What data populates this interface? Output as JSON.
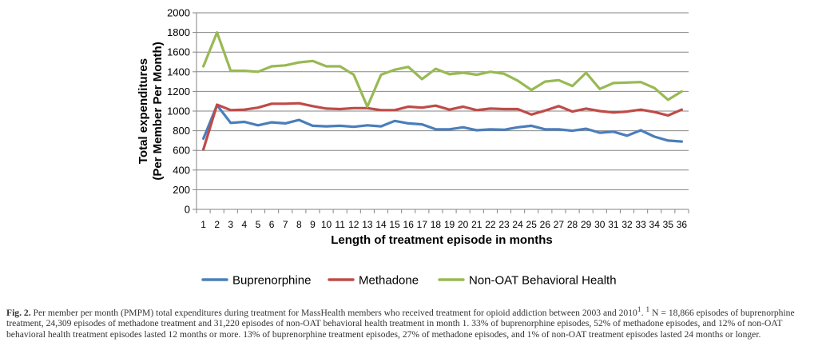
{
  "chart_data": {
    "type": "line",
    "ylabel": "Total expenditures\n(Per Member Per Month)",
    "xlabel": "Length of treatment episode in months",
    "ylim": [
      0,
      2000
    ],
    "yticks": [
      0,
      200,
      400,
      600,
      800,
      1000,
      1200,
      1400,
      1600,
      1800,
      2000
    ],
    "grid": true,
    "legend_position": "bottom",
    "x": [
      "1",
      "2",
      "3",
      "4",
      "5",
      "6",
      "7",
      "8",
      "9",
      "10",
      "11",
      "12",
      "13",
      "14",
      "15",
      "16",
      "17",
      "18",
      "19",
      "20",
      "21",
      "22",
      "23",
      "24",
      "25",
      "26",
      "27",
      "28",
      "29",
      "30",
      "31",
      "32",
      "33",
      "34",
      "35",
      "36"
    ],
    "series": [
      {
        "name": "Buprenorphine",
        "color": "#4a7ebb",
        "values": [
          720,
          1060,
          880,
          890,
          855,
          885,
          875,
          910,
          850,
          845,
          850,
          840,
          855,
          845,
          900,
          875,
          865,
          815,
          815,
          835,
          805,
          815,
          810,
          835,
          850,
          815,
          815,
          800,
          820,
          780,
          790,
          750,
          805,
          740,
          700,
          690
        ]
      },
      {
        "name": "Methadone",
        "color": "#be4b48",
        "values": [
          610,
          1065,
          1010,
          1015,
          1035,
          1075,
          1075,
          1080,
          1050,
          1025,
          1020,
          1030,
          1030,
          1010,
          1010,
          1045,
          1035,
          1055,
          1015,
          1045,
          1010,
          1025,
          1020,
          1020,
          965,
          1005,
          1050,
          995,
          1025,
          1000,
          985,
          995,
          1015,
          990,
          955,
          1015
        ]
      },
      {
        "name": "Non-OAT Behavioral Health",
        "color": "#98b954",
        "values": [
          1455,
          1800,
          1410,
          1410,
          1400,
          1455,
          1465,
          1495,
          1510,
          1455,
          1455,
          1370,
          1045,
          1370,
          1420,
          1450,
          1325,
          1430,
          1375,
          1390,
          1370,
          1400,
          1380,
          1310,
          1215,
          1300,
          1315,
          1255,
          1390,
          1225,
          1285,
          1290,
          1295,
          1235,
          1115,
          1200
        ]
      }
    ]
  },
  "caption": {
    "label": "Fig. 2.",
    "text": " Per member per month (PMPM) total expenditures during treatment for MassHealth members who received treatment for opioid addiction between 2003 and 2010",
    "sup1": "1",
    "text2": ". ",
    "sup2": "1",
    "text3": " N = 18,866 episodes of buprenorphine treatment, 24,309 episodes of methadone treatment and 31,220 episodes of non-OAT behavioral health treatment in month 1. 33% of buprenorphine episodes, 52% of methadone episodes, and 12% of non-OAT behavioral health treatment episodes lasted 12 months or more. 13% of buprenorphine treatment episodes, 27% of methadone episodes, and 1% of non-OAT treatment episodes lasted 24 months or longer."
  }
}
